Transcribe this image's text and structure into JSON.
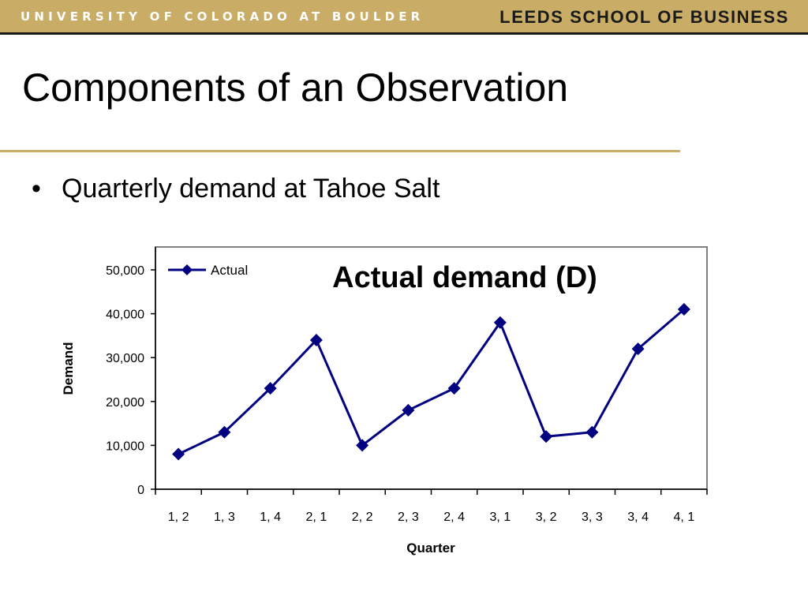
{
  "header": {
    "university": "UNIVERSITY OF COLORADO AT BOULDER",
    "school": "LEEDS SCHOOL OF BUSINESS"
  },
  "slide": {
    "title": "Components of an Observation",
    "bullet": "Quarterly demand at Tahoe Salt"
  },
  "colors": {
    "brand_gold": "#c9ad67",
    "series": "#000080"
  },
  "chart_data": {
    "type": "line",
    "title": "Actual demand (D)",
    "xlabel": "Quarter",
    "ylabel": "Demand",
    "ylim": [
      0,
      50000
    ],
    "yticks": [
      "0",
      "10,000",
      "20,000",
      "30,000",
      "40,000",
      "50,000"
    ],
    "ytick_values": [
      0,
      10000,
      20000,
      30000,
      40000,
      50000
    ],
    "categories": [
      "1, 2",
      "1, 3",
      "1, 4",
      "2, 1",
      "2, 2",
      "2, 3",
      "2, 4",
      "3, 1",
      "3, 2",
      "3, 3",
      "3, 4",
      "4, 1"
    ],
    "series": [
      {
        "name": "Actual",
        "marker": "diamond",
        "values": [
          8000,
          13000,
          23000,
          34000,
          10000,
          18000,
          23000,
          38000,
          12000,
          13000,
          32000,
          41000
        ]
      }
    ],
    "legend": "top-left",
    "grid": false
  }
}
